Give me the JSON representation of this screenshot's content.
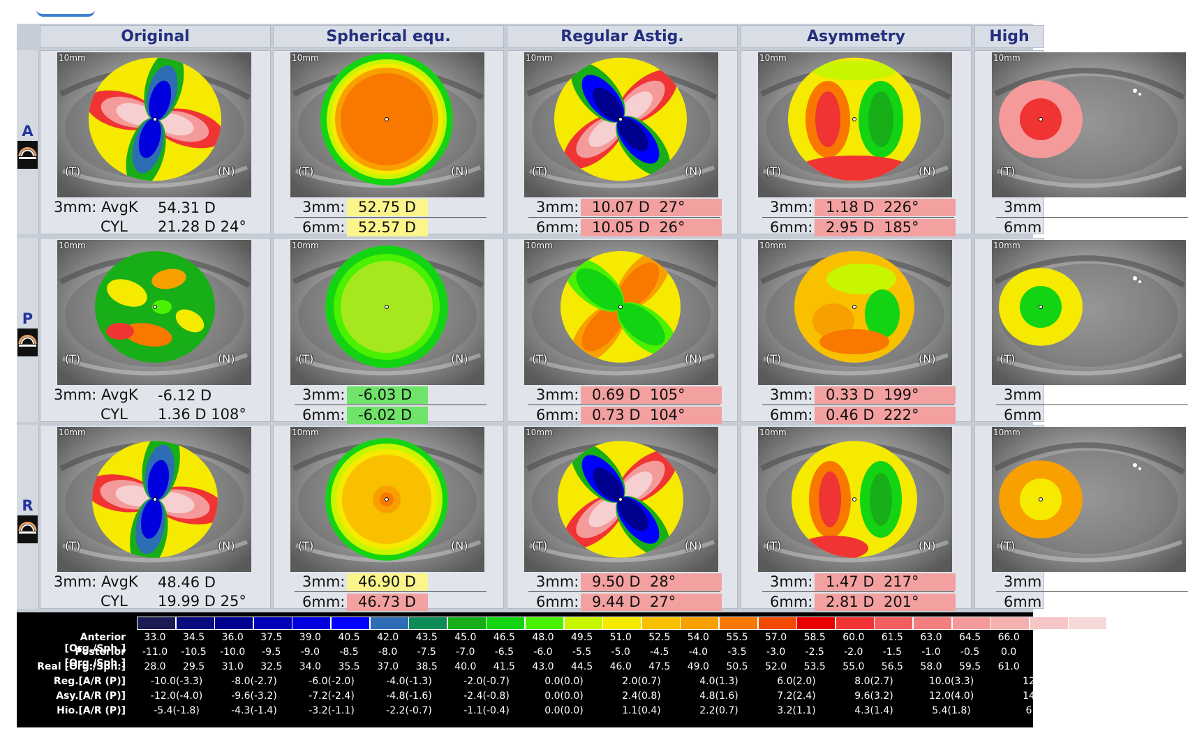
{
  "colors": {
    "header_text": "#23307e",
    "row_letter": "#2533a0",
    "yellow_box": "#fbf58b",
    "green_box": "#6fe36a",
    "red_box": "#f3a0a0"
  },
  "columns": [
    "Original",
    "Spherical equ.",
    "Regular Astig.",
    "Asymmetry",
    "High"
  ],
  "rows": [
    {
      "letter": "A",
      "icon": "anterior-surface-icon",
      "original": {
        "label1": "3mm: AvgK",
        "value1": "54.31 D",
        "label2": "CYL",
        "value2": "21.28 D 24°"
      },
      "spherical": {
        "r1_label": "3mm:",
        "r1_value": "52.75 D",
        "r1_color": "#fbf58b",
        "r2_label": "6mm:",
        "r2_value": "52.57 D",
        "r2_color": "#fbf58b"
      },
      "regular": {
        "r1_label": "3mm:",
        "r1_value": "10.07 D  27°",
        "r2_label": "6mm:",
        "r2_value": "10.05 D  26°"
      },
      "asymmetry": {
        "r1_label": "3mm:",
        "r1_value": "1.18 D  226°",
        "r2_label": "6mm:",
        "r2_value": "2.95 D  185°"
      },
      "high": {
        "r1_label": "3mm",
        "r2_label": "6mm"
      }
    },
    {
      "letter": "P",
      "icon": "posterior-surface-icon",
      "original": {
        "label1": "3mm: AvgK",
        "value1": "-6.12 D",
        "label2": "CYL",
        "value2": "1.36 D 108°"
      },
      "spherical": {
        "r1_label": "3mm:",
        "r1_value": "-6.03 D",
        "r1_color": "#6fe36a",
        "r2_label": "6mm:",
        "r2_value": "-6.02 D",
        "r2_color": "#6fe36a"
      },
      "regular": {
        "r1_label": "3mm:",
        "r1_value": "0.69 D  105°",
        "r2_label": "6mm:",
        "r2_value": "0.73 D  104°"
      },
      "asymmetry": {
        "r1_label": "3mm:",
        "r1_value": "0.33 D  199°",
        "r2_label": "6mm:",
        "r2_value": "0.46 D  222°"
      },
      "high": {
        "r1_label": "3mm",
        "r2_label": "6mm"
      }
    },
    {
      "letter": "R",
      "icon": "real-power-icon",
      "original": {
        "label1": "3mm: AvgK",
        "value1": "48.46 D",
        "label2": "CYL",
        "value2": "19.99 D 25°"
      },
      "spherical": {
        "r1_label": "3mm:",
        "r1_value": "46.90 D",
        "r1_color": "#fbf58b",
        "r2_label": "6mm:",
        "r2_value": "46.73 D",
        "r2_color": "#f3a0a0"
      },
      "regular": {
        "r1_label": "3mm:",
        "r1_value": "9.50 D  28°",
        "r2_label": "6mm:",
        "r2_value": "9.44 D  27°"
      },
      "asymmetry": {
        "r1_label": "3mm:",
        "r1_value": "1.47 D  217°",
        "r2_label": "6mm:",
        "r2_value": "2.81 D  201°"
      },
      "high": {
        "r1_label": "3mm",
        "r2_label": "6mm"
      }
    }
  ],
  "map_labels": {
    "scale": "10mm",
    "temporal": "(T)",
    "nasal": "(N)"
  },
  "legend": {
    "swatch_colors": [
      "#1c1c55",
      "#0b0b80",
      "#00008f",
      "#0000b8",
      "#0000de",
      "#0000ff",
      "#2d6db4",
      "#0b8b55",
      "#17ae17",
      "#13d413",
      "#4af100",
      "#c8f500",
      "#f5ea00",
      "#f9c000",
      "#f8a000",
      "#f87800",
      "#f24a00",
      "#e80000",
      "#f03434",
      "#f35e5e",
      "#f57f7f",
      "#f59a9a",
      "#f5b0b0",
      "#f6c5c5",
      "#f7d8d8"
    ],
    "rows_single": [
      {
        "name": "Anterior [Org./Sph.]",
        "values": [
          "33.0",
          "34.5",
          "36.0",
          "37.5",
          "39.0",
          "40.5",
          "42.0",
          "43.5",
          "45.0",
          "46.5",
          "48.0",
          "49.5",
          "51.0",
          "52.5",
          "54.0",
          "55.5",
          "57.0",
          "58.5",
          "60.0",
          "61.5",
          "63.0",
          "64.5",
          "66.0"
        ]
      },
      {
        "name": "Posterior [Org./Sph.]",
        "values": [
          "-11.0",
          "-10.5",
          "-10.0",
          "-9.5",
          "-9.0",
          "-8.5",
          "-8.0",
          "-7.5",
          "-7.0",
          "-6.5",
          "-6.0",
          "-5.5",
          "-5.0",
          "-4.5",
          "-4.0",
          "-3.5",
          "-3.0",
          "-2.5",
          "-2.0",
          "-1.5",
          "-1.0",
          "-0.5",
          "0.0"
        ]
      },
      {
        "name": "Real [Org./Sph.]",
        "values": [
          "28.0",
          "29.5",
          "31.0",
          "32.5",
          "34.0",
          "35.5",
          "37.0",
          "38.5",
          "40.0",
          "41.5",
          "43.0",
          "44.5",
          "46.0",
          "47.5",
          "49.0",
          "50.5",
          "52.0",
          "53.5",
          "55.0",
          "56.5",
          "58.0",
          "59.5",
          "61.0"
        ]
      }
    ],
    "rows_double": [
      {
        "name": "Reg.[A/R (P)]",
        "values": [
          "-10.0(-3.3)",
          "-8.0(-2.7)",
          "-6.0(-2.0)",
          "-4.0(-1.3)",
          "-2.0(-0.7)",
          "0.0(0.0)",
          "2.0(0.7)",
          "4.0(1.3)",
          "6.0(2.0)",
          "8.0(2.7)",
          "10.0(3.3)",
          "12"
        ]
      },
      {
        "name": "Asy.[A/R (P)]",
        "values": [
          "-12.0(-4.0)",
          "-9.6(-3.2)",
          "-7.2(-2.4)",
          "-4.8(-1.6)",
          "-2.4(-0.8)",
          "0.0(0.0)",
          "2.4(0.8)",
          "4.8(1.6)",
          "7.2(2.4)",
          "9.6(3.2)",
          "12.0(4.0)",
          "14"
        ]
      },
      {
        "name": "Hio.[A/R (P)]",
        "values": [
          "-5.4(-1.8)",
          "-4.3(-1.4)",
          "-3.2(-1.1)",
          "-2.2(-0.7)",
          "-1.1(-0.4)",
          "0.0(0.0)",
          "1.1(0.4)",
          "2.2(0.7)",
          "3.2(1.1)",
          "4.3(1.4)",
          "5.4(1.8)",
          "6"
        ]
      }
    ]
  }
}
